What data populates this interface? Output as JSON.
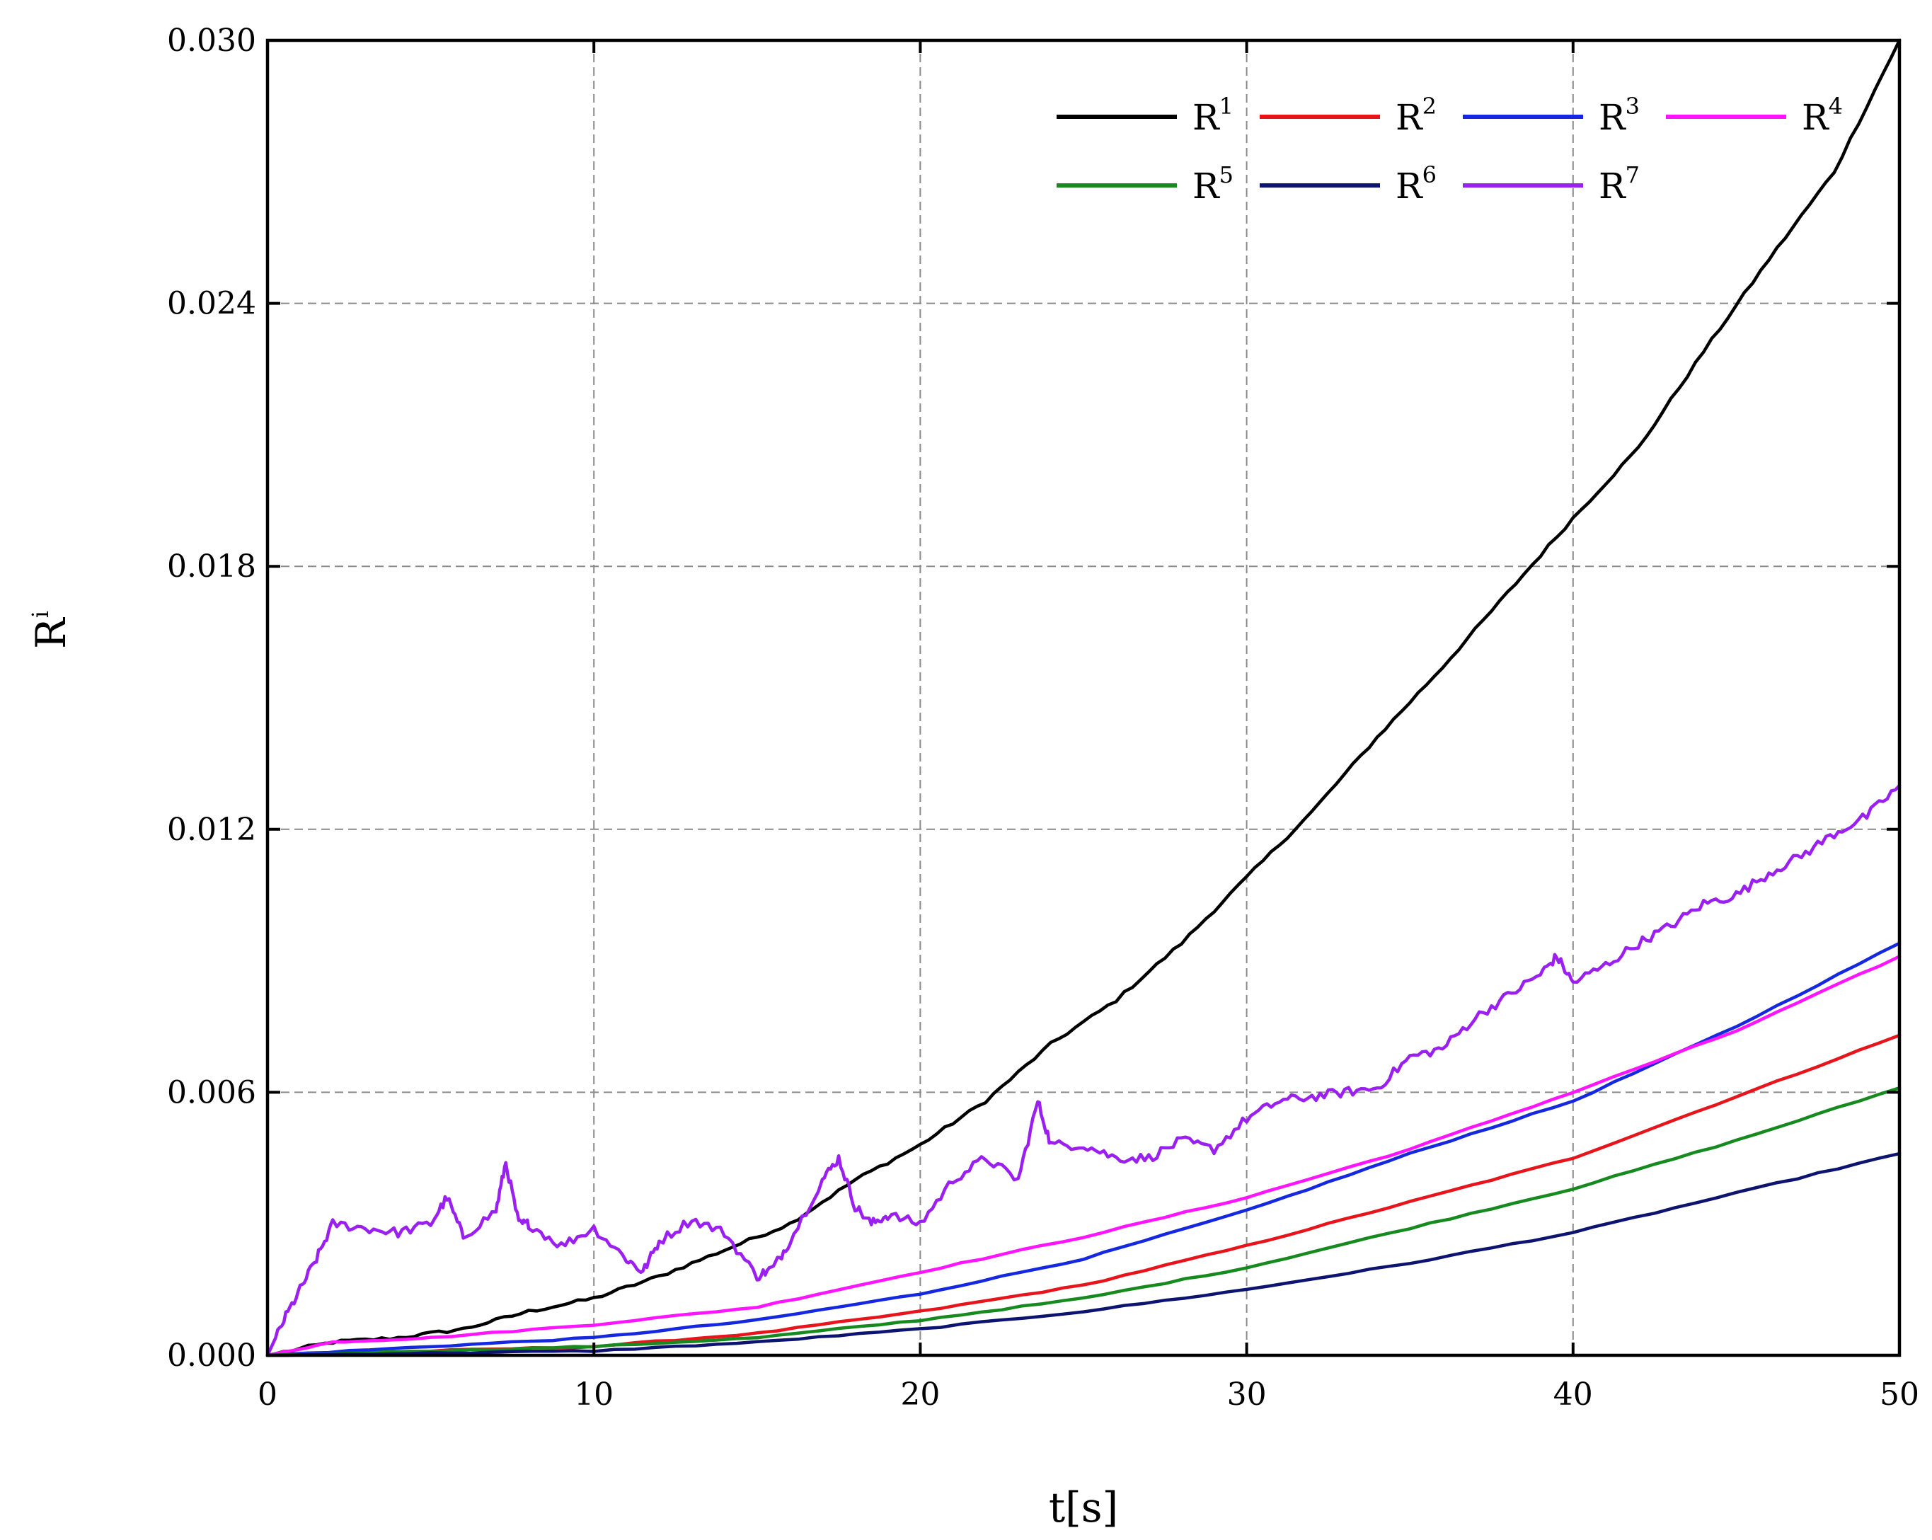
{
  "chart_data": {
    "type": "line",
    "xlabel": "t[s]",
    "ylabel_base": "R",
    "ylabel_sup": "i",
    "xlim": [
      0,
      50
    ],
    "ylim": [
      0,
      0.03
    ],
    "xticks": [
      "0",
      "10",
      "20",
      "30",
      "40",
      "50"
    ],
    "yticks": [
      "0.000",
      "0.006",
      "0.012",
      "0.018",
      "0.024",
      "0.030"
    ],
    "grid": true,
    "legend_position": "top-right",
    "series": [
      {
        "name": "R1",
        "label_base": "R",
        "label_sup": "1",
        "color": "#000000",
        "x": [
          0,
          2,
          4,
          6,
          8,
          10,
          12,
          14,
          16,
          18,
          20,
          22,
          24,
          26,
          28,
          30,
          32,
          34,
          36,
          38,
          40,
          42,
          44,
          46,
          48,
          50
        ],
        "y": [
          0,
          0.0003,
          0.0004,
          0.0006,
          0.001,
          0.0013,
          0.0018,
          0.0024,
          0.003,
          0.004,
          0.0048,
          0.0058,
          0.0071,
          0.0081,
          0.0094,
          0.0109,
          0.0124,
          0.0141,
          0.0157,
          0.0174,
          0.0191,
          0.0207,
          0.0229,
          0.025,
          0.027,
          0.03
        ]
      },
      {
        "name": "R2",
        "label_base": "R",
        "label_sup": "2",
        "color": "#e8141c",
        "x": [
          0,
          5,
          10,
          15,
          20,
          25,
          30,
          35,
          40,
          45,
          50
        ],
        "y": [
          0,
          0.0001,
          0.0002,
          0.0005,
          0.001,
          0.0016,
          0.0025,
          0.0035,
          0.0045,
          0.0059,
          0.0073
        ]
      },
      {
        "name": "R3",
        "label_base": "R",
        "label_sup": "3",
        "color": "#1428e0",
        "x": [
          0,
          5,
          10,
          15,
          20,
          25,
          30,
          35,
          40,
          45,
          50
        ],
        "y": [
          0,
          0.0002,
          0.0004,
          0.0008,
          0.0014,
          0.0022,
          0.0033,
          0.0046,
          0.0058,
          0.0075,
          0.0094
        ]
      },
      {
        "name": "R4",
        "label_base": "R",
        "label_sup": "4",
        "color": "#ff14ff",
        "x": [
          0,
          2,
          5,
          10,
          15,
          20,
          25,
          30,
          35,
          40,
          45,
          50
        ],
        "y": [
          0,
          0.0003,
          0.0004,
          0.0007,
          0.0011,
          0.0019,
          0.0027,
          0.0036,
          0.0047,
          0.006,
          0.0074,
          0.0091
        ]
      },
      {
        "name": "R5",
        "label_base": "R",
        "label_sup": "5",
        "color": "#168a1e",
        "x": [
          0,
          5,
          10,
          15,
          20,
          25,
          30,
          35,
          40,
          45,
          50
        ],
        "y": [
          0,
          0.0001,
          0.0002,
          0.0004,
          0.0008,
          0.0013,
          0.002,
          0.0029,
          0.0038,
          0.0049,
          0.0061
        ]
      },
      {
        "name": "R6",
        "label_base": "R",
        "label_sup": "6",
        "color": "#0c1470",
        "x": [
          0,
          5,
          10,
          15,
          20,
          25,
          30,
          35,
          40,
          45,
          50
        ],
        "y": [
          0,
          5e-05,
          0.0001,
          0.0003,
          0.0006,
          0.001,
          0.0015,
          0.0021,
          0.0028,
          0.0037,
          0.0046
        ]
      },
      {
        "name": "R7",
        "label_base": "R",
        "label_sup": "7",
        "color": "#9b1ff0",
        "x": [
          0,
          0.5,
          1,
          1.5,
          2,
          3,
          4,
          5,
          5.5,
          6,
          7,
          7.3,
          7.7,
          8,
          9,
          10,
          11,
          11.5,
          12,
          13,
          14,
          15,
          15.5,
          16,
          17,
          17.5,
          18,
          18.5,
          19,
          20,
          21,
          22,
          23,
          23.6,
          24,
          25,
          26,
          27,
          28,
          29,
          30,
          31,
          32,
          33,
          34,
          35,
          36,
          37,
          38,
          39,
          39.5,
          40,
          41,
          42,
          43,
          44,
          45,
          46,
          47,
          48,
          49,
          50
        ],
        "y": [
          0,
          0.0008,
          0.0015,
          0.0022,
          0.003,
          0.0029,
          0.0028,
          0.003,
          0.0036,
          0.0027,
          0.0033,
          0.0044,
          0.003,
          0.003,
          0.0025,
          0.0029,
          0.0022,
          0.0019,
          0.0026,
          0.0031,
          0.0028,
          0.0018,
          0.002,
          0.0026,
          0.004,
          0.0045,
          0.0034,
          0.003,
          0.0032,
          0.003,
          0.004,
          0.0045,
          0.004,
          0.0058,
          0.0048,
          0.0048,
          0.0045,
          0.0045,
          0.0049,
          0.0047,
          0.0054,
          0.0058,
          0.0059,
          0.006,
          0.0061,
          0.0068,
          0.007,
          0.0077,
          0.0082,
          0.0087,
          0.0091,
          0.0085,
          0.0089,
          0.0094,
          0.0098,
          0.0103,
          0.0105,
          0.011,
          0.0114,
          0.0119,
          0.0123,
          0.013
        ]
      }
    ]
  }
}
